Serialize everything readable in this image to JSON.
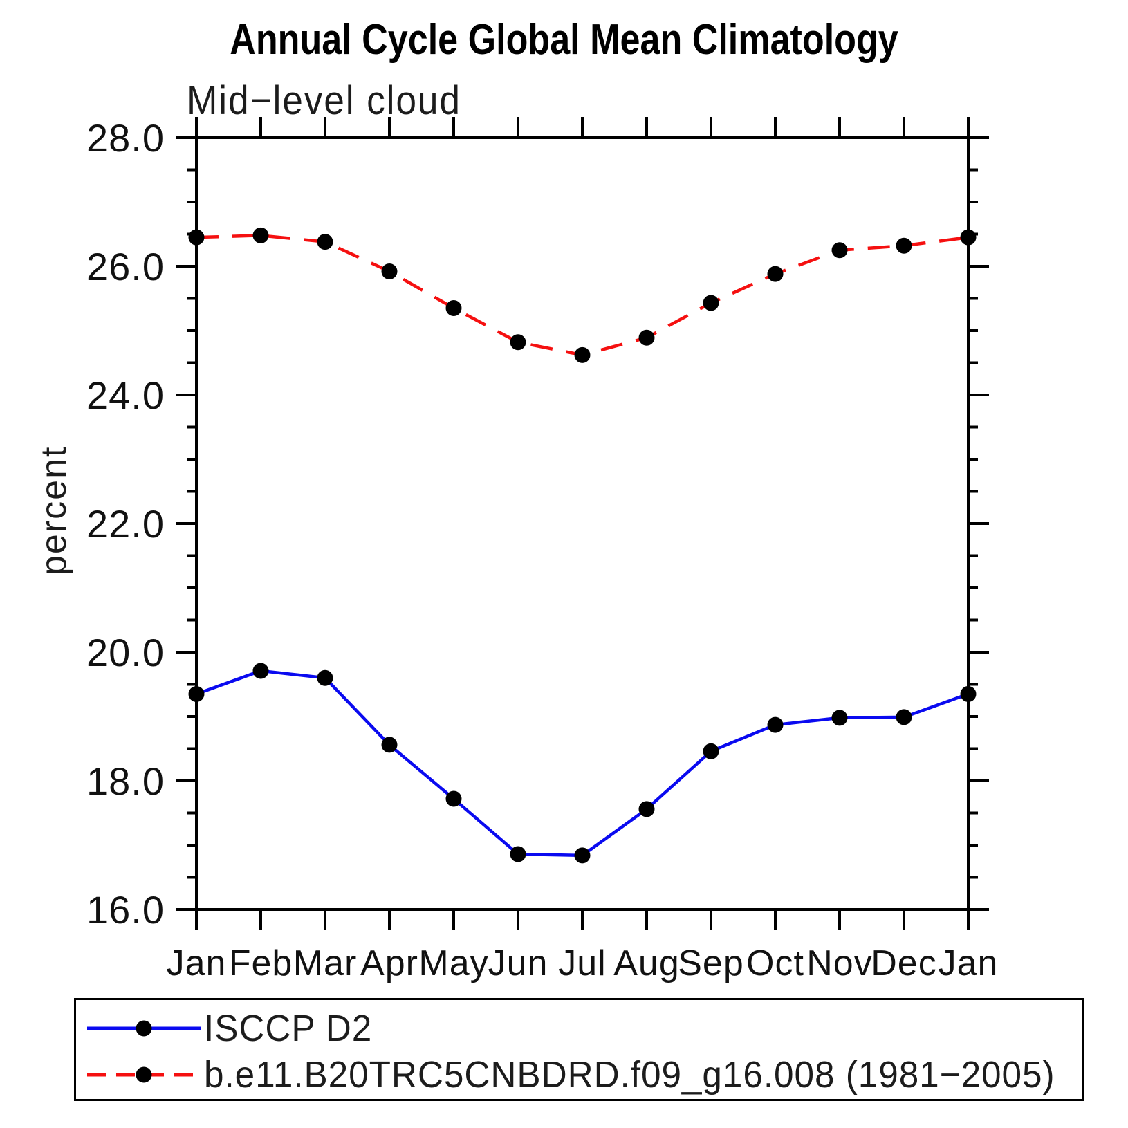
{
  "title": "Annual Cycle Global Mean Climatology",
  "subtitle": "Mid−level cloud",
  "y_axis_title": "percent",
  "axis_color": "#000000",
  "chart_data": {
    "type": "line",
    "x_categories": [
      "Jan",
      "Feb",
      "Mar",
      "Apr",
      "May",
      "Jun",
      "Jul",
      "Aug",
      "Sep",
      "Oct",
      "Nov",
      "Dec",
      "Jan"
    ],
    "ylabel": "percent",
    "ylim": [
      16.0,
      28.0
    ],
    "y_major_step": 2.0,
    "y_minor_step": 0.5,
    "y_tick_labels": [
      "16.0",
      "18.0",
      "20.0",
      "22.0",
      "24.0",
      "26.0",
      "28.0"
    ],
    "grid": false,
    "legend_position": "bottom-box",
    "series": [
      {
        "name": "ISCCP D2",
        "line_style": "solid",
        "color": "#0a0af0",
        "marker": "filled-circle",
        "marker_color": "#000000",
        "values": [
          19.35,
          19.71,
          19.6,
          18.56,
          17.72,
          16.86,
          16.84,
          17.56,
          18.46,
          18.87,
          18.98,
          18.99,
          19.35
        ]
      },
      {
        "name": "b.e11.B20TRC5CNBDRD.f09_g16.008 (1981−2005)",
        "line_style": "dashed",
        "color": "#f51010",
        "marker": "filled-circle",
        "marker_color": "#000000",
        "values": [
          26.45,
          26.48,
          26.38,
          25.92,
          25.35,
          24.82,
          24.62,
          24.89,
          25.43,
          25.88,
          26.25,
          26.32,
          26.45
        ]
      }
    ]
  }
}
